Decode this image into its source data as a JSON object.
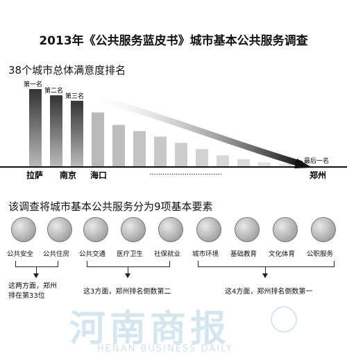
{
  "title": "2013年《公共服务蓝皮书》城市基本公共服务调查",
  "ranking": {
    "heading": "38个城市总体满意度排名",
    "rank_labels": [
      "第一名",
      "第二名",
      "第三名",
      "最后一名"
    ],
    "cities": [
      "拉萨",
      "南京",
      "海口",
      "郑州"
    ],
    "ellipsis": "·································"
  },
  "chart_data": {
    "type": "bar",
    "title": "38个城市总体满意度排名",
    "categories": [
      "拉萨",
      "南京",
      "海口",
      "",
      "",
      "",
      "",
      "",
      "",
      "",
      "",
      "",
      "",
      "郑州"
    ],
    "values": [
      100,
      92,
      85,
      70,
      54,
      46,
      39,
      31,
      23,
      15,
      10,
      6,
      4,
      3
    ],
    "xlabel": "",
    "ylabel": "",
    "grid": false
  },
  "elements": {
    "heading": "该调查将城市基本公共服务分为9项基本要素",
    "items": [
      {
        "label": "公共安全",
        "icon": "police-car-icon"
      },
      {
        "label": "公共住房",
        "icon": "house-icon"
      },
      {
        "label": "公共交通",
        "icon": "bus-icon"
      },
      {
        "label": "医疗卫生",
        "icon": "medical-icon"
      },
      {
        "label": "社保就业",
        "icon": "social-security-icon"
      },
      {
        "label": "城市环境",
        "icon": "city-icon"
      },
      {
        "label": "基础教育",
        "icon": "books-icon"
      },
      {
        "label": "文化体育",
        "icon": "culture-icon"
      },
      {
        "label": "公职服务",
        "icon": "civil-servant-icon"
      }
    ],
    "notes": [
      {
        "line1": "这两方面，郑州",
        "line2": "排在第33位"
      },
      {
        "line1": "这3方面，郑州排名倒数第二"
      },
      {
        "line1": "这4方面，郑州排名倒数第一"
      }
    ]
  },
  "watermark": {
    "name": "河南商报",
    "sub": "HENAN BUSINESS DAILY"
  }
}
